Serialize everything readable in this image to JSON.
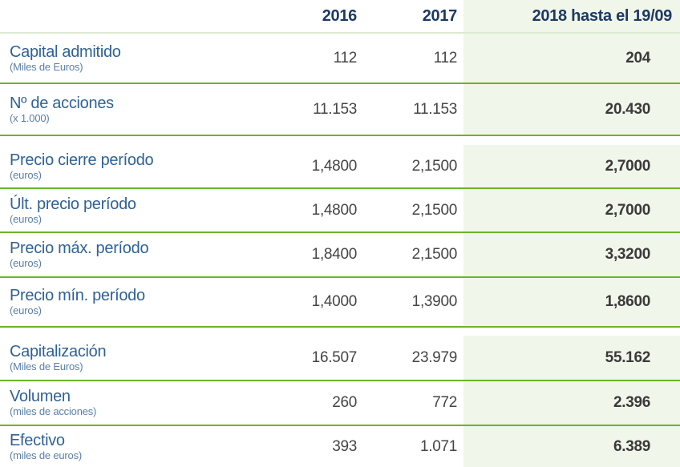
{
  "header": {
    "col_2016": "2016",
    "col_2017": "2017",
    "col_2018": "2018 hasta el 19/09"
  },
  "table": {
    "rows": [
      {
        "label": "Capital admitido",
        "unit": "(Miles de Euros)",
        "y2016": "112",
        "y2017": "112",
        "y2018": "204"
      },
      {
        "label": "Nº de acciones",
        "unit": "(x 1.000)",
        "y2016": "11.153",
        "y2017": "11.153",
        "y2018": "20.430"
      },
      {
        "label": "Precio cierre período",
        "unit": "(euros)",
        "y2016": "1,4800",
        "y2017": "2,1500",
        "y2018": "2,7000"
      },
      {
        "label": "Últ. precio período",
        "unit": "(euros)",
        "y2016": "1,4800",
        "y2017": "2,1500",
        "y2018": "2,7000"
      },
      {
        "label": "Precio máx. período",
        "unit": "(euros)",
        "y2016": "1,8400",
        "y2017": "2,1500",
        "y2018": "3,3200"
      },
      {
        "label": "Precio mín. período",
        "unit": "(euros)",
        "y2016": "1,4000",
        "y2017": "1,3900",
        "y2018": "1,8600"
      },
      {
        "label": "Capitalización",
        "unit": "(Miles de Euros)",
        "y2016": "16.507",
        "y2017": "23.979",
        "y2018": "55.162"
      },
      {
        "label": "Volumen",
        "unit": "(miles de acciones)",
        "y2016": "260",
        "y2017": "772",
        "y2018": "2.396"
      },
      {
        "label": "Efectivo",
        "unit": "(miles de euros)",
        "y2016": "393",
        "y2017": "1.071",
        "y2018": "6.389"
      }
    ]
  },
  "colors": {
    "separator_green": "#6cb32c",
    "header_separator_light_green": "#dcebd1",
    "highlight_column_bg": "#f0f6ea",
    "header_text_blue": "#1d3a66",
    "label_blue": "#2f6296",
    "unit_blue": "#5a7fa8",
    "value_gray": "#454545"
  },
  "chart_data": {
    "type": "table",
    "title": "",
    "columns": [
      "",
      "2016",
      "2017",
      "2018 hasta el 19/09"
    ],
    "rows": [
      [
        "Capital admitido (Miles de Euros)",
        "112",
        "112",
        "204"
      ],
      [
        "Nº de acciones (x 1.000)",
        "11.153",
        "11.153",
        "20.430"
      ],
      [
        "Precio cierre período (euros)",
        "1,4800",
        "2,1500",
        "2,7000"
      ],
      [
        "Últ. precio período (euros)",
        "1,4800",
        "2,1500",
        "2,7000"
      ],
      [
        "Precio máx. período (euros)",
        "1,8400",
        "2,1500",
        "3,3200"
      ],
      [
        "Precio mín. período (euros)",
        "1,4000",
        "1,3900",
        "1,8600"
      ],
      [
        "Capitalización (Miles de Euros)",
        "16.507",
        "23.979",
        "55.162"
      ],
      [
        "Volumen (miles de acciones)",
        "260",
        "772",
        "2.396"
      ],
      [
        "Efectivo (miles de euros)",
        "393",
        "1.071",
        "6.389"
      ]
    ],
    "layout_hints": {
      "last_column_highlighted": true,
      "last_column_bold": true,
      "row_separator_color": "#6cb32c",
      "highlight_bg": "#f0f6ea"
    }
  }
}
